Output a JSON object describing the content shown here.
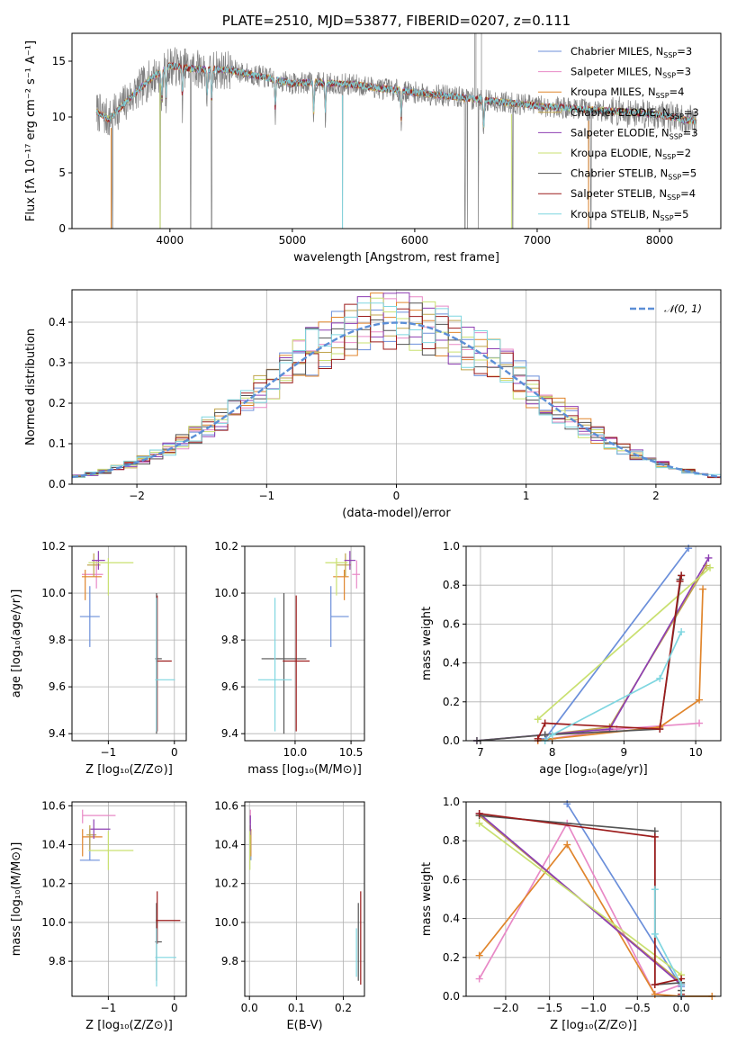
{
  "colors": {
    "chabrier_miles": "#6b8fda",
    "salpeter_miles": "#e889c6",
    "kroupa_miles": "#e0852c",
    "chabrier_elodie": "#bfa34b",
    "salpeter_elodie": "#8e3fb3",
    "kroupa_elodie": "#c9e070",
    "chabrier_stelib": "#555555",
    "salpeter_stelib": "#9c1b1b",
    "kroupa_stelib": "#7fd6e0",
    "data": "#808080",
    "normal_curve": "#5b8ed6"
  },
  "chart_data": [
    {
      "id": "spectrum",
      "type": "line",
      "title": "PLATE=2510, MJD=53877, FIBERID=0207, z=0.111",
      "xlabel": "wavelength [Angstrom, rest frame]",
      "ylabel": "Flux [fλ 10⁻¹⁷ erg cm⁻² s⁻¹ A⁻¹]",
      "xlim": [
        3200,
        8500
      ],
      "ylim": [
        0,
        17.5
      ],
      "xticks": [
        4000,
        5000,
        6000,
        7000,
        8000
      ],
      "yticks": [
        0,
        5,
        10,
        15
      ],
      "continuum": {
        "x": [
          3400,
          3500,
          3700,
          3850,
          4000,
          4200,
          4500,
          4800,
          5000,
          5200,
          5500,
          6000,
          6500,
          7000,
          7500,
          7800,
          8000,
          8200,
          8300
        ],
        "y": [
          10.5,
          9.8,
          12.0,
          13.5,
          14.6,
          14.3,
          14.2,
          13.5,
          13.0,
          13.1,
          12.9,
          12.2,
          11.6,
          11.0,
          10.6,
          10.4,
          10.2,
          9.8,
          9.6
        ]
      },
      "absorption_lines": [
        3934,
        3969,
        4102,
        4304,
        4341,
        4861,
        5175,
        5270,
        5890,
        6563
      ],
      "data_dropouts": [
        3530,
        3920,
        4170,
        4340,
        5410,
        6410,
        6430,
        6520,
        6800,
        7420,
        7440
      ],
      "legend": [
        {
          "label": "Chabrier MILES, N",
          "sub": "SSP",
          "tail": "=3",
          "color": "chabrier_miles"
        },
        {
          "label": "Salpeter MILES, N",
          "sub": "SSP",
          "tail": "=3",
          "color": "salpeter_miles"
        },
        {
          "label": "Kroupa MILES, N",
          "sub": "SSP",
          "tail": "=4",
          "color": "kroupa_miles"
        },
        {
          "label": "Chabrier ELODIE, N",
          "sub": "SSP",
          "tail": "=3",
          "color": "chabrier_elodie"
        },
        {
          "label": "Salpeter ELODIE, N",
          "sub": "SSP",
          "tail": "=3",
          "color": "salpeter_elodie"
        },
        {
          "label": "Kroupa ELODIE, N",
          "sub": "SSP",
          "tail": "=2",
          "color": "kroupa_elodie"
        },
        {
          "label": "Chabrier STELIB, N",
          "sub": "SSP",
          "tail": "=5",
          "color": "chabrier_stelib"
        },
        {
          "label": "Salpeter STELIB, N",
          "sub": "SSP",
          "tail": "=4",
          "color": "salpeter_stelib"
        },
        {
          "label": "Kroupa STELIB, N",
          "sub": "SSP",
          "tail": "=5",
          "color": "kroupa_stelib"
        }
      ]
    },
    {
      "id": "residuals",
      "type": "histogram",
      "xlabel": "(data-model)/error",
      "ylabel": "Normed distribution",
      "xlim": [
        -2.5,
        2.5
      ],
      "ylim": [
        0,
        0.48
      ],
      "xticks": [
        -2,
        -1,
        0,
        1,
        2
      ],
      "yticks": [
        0.0,
        0.1,
        0.2,
        0.3,
        0.4
      ],
      "bin_width": 0.1,
      "legend": "𝒩(0, 1)"
    },
    {
      "id": "age_vs_Z",
      "type": "errorbar",
      "xlabel": "Z [log₁₀(Z/Z⊙)]",
      "ylabel": "age  [log₁₀(age/yr)]",
      "xlim": [
        -1.55,
        0.18
      ],
      "ylim": [
        9.37,
        10.2
      ],
      "xticks": [
        -1,
        0
      ],
      "yticks": [
        9.4,
        9.6,
        9.8,
        10.0,
        10.2
      ],
      "points": [
        {
          "c": "chabrier_miles",
          "x": -1.28,
          "y": 9.9,
          "xe": [
            0.15,
            0.15
          ],
          "ye": [
            0.13,
            0.13
          ]
        },
        {
          "c": "salpeter_miles",
          "x": -1.18,
          "y": 10.08,
          "xe": [
            0.22,
            0.1
          ],
          "ye": [
            0.06,
            0.06
          ]
        },
        {
          "c": "kroupa_miles",
          "x": -1.35,
          "y": 10.07,
          "xe": [
            0.05,
            0.25
          ],
          "ye": [
            0.1,
            0.03
          ]
        },
        {
          "c": "chabrier_elodie",
          "x": -1.22,
          "y": 10.12,
          "xe": [
            0.1,
            0.1
          ],
          "ye": [
            0.05,
            0.05
          ]
        },
        {
          "c": "salpeter_elodie",
          "x": -1.15,
          "y": 10.14,
          "xe": [
            0.1,
            0.1
          ],
          "ye": [
            0.04,
            0.04
          ]
        },
        {
          "c": "kroupa_elodie",
          "x": -1.0,
          "y": 10.13,
          "xe": [
            0.3,
            0.38
          ],
          "ye": [
            0.14,
            0.02
          ]
        },
        {
          "c": "chabrier_stelib",
          "x": -0.27,
          "y": 9.72,
          "xe": [
            0.02,
            0.08
          ],
          "ye": [
            0.32,
            0.28
          ]
        },
        {
          "c": "salpeter_stelib",
          "x": -0.26,
          "y": 9.71,
          "xe": [
            0.02,
            0.22
          ],
          "ye": [
            0.3,
            0.28
          ]
        },
        {
          "c": "kroupa_stelib",
          "x": -0.27,
          "y": 9.63,
          "xe": [
            0.02,
            0.28
          ],
          "ye": [
            0.22,
            0.35
          ]
        }
      ]
    },
    {
      "id": "age_vs_mass",
      "type": "errorbar",
      "xlabel": "mass [log₁₀(M/M⊙)]",
      "ylabel": "",
      "xlim": [
        9.55,
        10.62
      ],
      "ylim": [
        9.37,
        10.2
      ],
      "xticks": [
        10.0,
        10.5
      ],
      "yticks": [
        9.4,
        9.6,
        9.8,
        10.0,
        10.2
      ],
      "points": [
        {
          "c": "chabrier_miles",
          "x": 10.32,
          "y": 9.9,
          "xe": [
            0.0,
            0.16
          ],
          "ye": [
            0.13,
            0.13
          ]
        },
        {
          "c": "salpeter_miles",
          "x": 10.55,
          "y": 10.08,
          "xe": [
            0.04,
            0.03
          ],
          "ye": [
            0.06,
            0.06
          ]
        },
        {
          "c": "kroupa_miles",
          "x": 10.44,
          "y": 10.07,
          "xe": [
            0.1,
            0.04
          ],
          "ye": [
            0.1,
            0.03
          ]
        },
        {
          "c": "chabrier_elodie",
          "x": 10.45,
          "y": 10.12,
          "xe": [
            0.08,
            0.05
          ],
          "ye": [
            0.05,
            0.05
          ]
        },
        {
          "c": "salpeter_elodie",
          "x": 10.49,
          "y": 10.14,
          "xe": [
            0.05,
            0.05
          ],
          "ye": [
            0.04,
            0.04
          ]
        },
        {
          "c": "kroupa_elodie",
          "x": 10.37,
          "y": 10.13,
          "xe": [
            0.1,
            0.1
          ],
          "ye": [
            0.14,
            0.02
          ]
        },
        {
          "c": "chabrier_stelib",
          "x": 9.9,
          "y": 9.72,
          "xe": [
            0.2,
            0.2
          ],
          "ye": [
            0.32,
            0.28
          ]
        },
        {
          "c": "salpeter_stelib",
          "x": 10.01,
          "y": 9.71,
          "xe": [
            0.12,
            0.12
          ],
          "ye": [
            0.3,
            0.28
          ]
        },
        {
          "c": "kroupa_stelib",
          "x": 9.82,
          "y": 9.63,
          "xe": [
            0.15,
            0.15
          ],
          "ye": [
            0.22,
            0.35
          ]
        }
      ]
    },
    {
      "id": "massweight_vs_age",
      "type": "line",
      "xlabel": "age  [log₁₀(age/yr)]",
      "ylabel": "mass weight",
      "xlim": [
        6.8,
        10.35
      ],
      "ylim": [
        0,
        1.0
      ],
      "xticks": [
        7,
        8,
        9,
        10
      ],
      "yticks": [
        0.0,
        0.2,
        0.4,
        0.6,
        0.8,
        1.0
      ],
      "series": [
        {
          "c": "chabrier_miles",
          "x": [
            7.9,
            9.9
          ],
          "y": [
            0.01,
            0.99
          ]
        },
        {
          "c": "salpeter_miles",
          "x": [
            7.8,
            8.9,
            10.05
          ],
          "y": [
            0.0,
            0.06,
            0.09
          ]
        },
        {
          "c": "kroupa_miles",
          "x": [
            7.8,
            8.0,
            9.5,
            10.05,
            10.1
          ],
          "y": [
            0.0,
            0.01,
            0.07,
            0.21,
            0.78
          ]
        },
        {
          "c": "chabrier_elodie",
          "x": [
            7.9,
            8.8,
            10.15
          ],
          "y": [
            0.03,
            0.07,
            0.9
          ]
        },
        {
          "c": "salpeter_elodie",
          "x": [
            6.95,
            8.8,
            10.18
          ],
          "y": [
            0.0,
            0.06,
            0.94
          ]
        },
        {
          "c": "kroupa_elodie",
          "x": [
            7.8,
            10.2
          ],
          "y": [
            0.11,
            0.89
          ]
        },
        {
          "c": "chabrier_stelib",
          "x": [
            6.95,
            7.9,
            9.5,
            9.8,
            9.78
          ],
          "y": [
            0.0,
            0.03,
            0.06,
            0.85,
            0.83
          ]
        },
        {
          "c": "salpeter_stelib",
          "x": [
            7.8,
            7.9,
            9.5,
            9.78,
            9.8
          ],
          "y": [
            0.01,
            0.09,
            0.06,
            0.82,
            0.85
          ]
        },
        {
          "c": "kroupa_stelib",
          "x": [
            7.9,
            8.0,
            9.5,
            9.8
          ],
          "y": [
            0.0,
            0.03,
            0.32,
            0.56
          ]
        }
      ]
    },
    {
      "id": "mass_vs_Z",
      "type": "errorbar",
      "xlabel": "Z [log₁₀(Z/Z⊙)]",
      "ylabel": "mass [log₁₀(M/M⊙)]",
      "xlim": [
        -1.55,
        0.18
      ],
      "ylim": [
        9.62,
        10.62
      ],
      "xticks": [
        -1,
        0
      ],
      "yticks": [
        9.8,
        10.0,
        10.2,
        10.4,
        10.6
      ],
      "points": [
        {
          "c": "chabrier_miles",
          "x": -1.28,
          "y": 10.32,
          "xe": [
            0.15,
            0.15
          ],
          "ye": [
            0.0,
            0.16
          ]
        },
        {
          "c": "salpeter_miles",
          "x": -1.39,
          "y": 10.55,
          "xe": [
            0.0,
            0.5
          ],
          "ye": [
            0.04,
            0.03
          ]
        },
        {
          "c": "kroupa_miles",
          "x": -1.39,
          "y": 10.44,
          "xe": [
            0.0,
            0.3
          ],
          "ye": [
            0.1,
            0.04
          ]
        },
        {
          "c": "chabrier_elodie",
          "x": -1.28,
          "y": 10.45,
          "xe": [
            0.05,
            0.1
          ],
          "ye": [
            0.08,
            0.05
          ]
        },
        {
          "c": "salpeter_elodie",
          "x": -1.22,
          "y": 10.48,
          "xe": [
            0.05,
            0.25
          ],
          "ye": [
            0.05,
            0.05
          ]
        },
        {
          "c": "kroupa_elodie",
          "x": -1.0,
          "y": 10.37,
          "xe": [
            0.3,
            0.38
          ],
          "ye": [
            0.1,
            0.1
          ]
        },
        {
          "c": "chabrier_stelib",
          "x": -0.27,
          "y": 9.9,
          "xe": [
            0.02,
            0.08
          ],
          "ye": [
            0.2,
            0.2
          ]
        },
        {
          "c": "salpeter_stelib",
          "x": -0.26,
          "y": 10.01,
          "xe": [
            0.02,
            0.35
          ],
          "ye": [
            0.12,
            0.15
          ]
        },
        {
          "c": "kroupa_stelib",
          "x": -0.27,
          "y": 9.82,
          "xe": [
            0.02,
            0.3
          ],
          "ye": [
            0.15,
            0.15
          ]
        }
      ]
    },
    {
      "id": "mass_vs_ebv",
      "type": "errorbar",
      "xlabel": "E(B-V)",
      "ylabel": "",
      "xlim": [
        -0.01,
        0.245
      ],
      "ylim": [
        9.62,
        10.62
      ],
      "xticks": [
        0.0,
        0.1,
        0.2
      ],
      "yticks": [
        9.8,
        10.0,
        10.2,
        10.4,
        10.6
      ],
      "points": [
        {
          "c": "chabrier_miles",
          "x": 0.003,
          "y": 10.32,
          "xe": [
            0.0,
            0.0
          ],
          "ye": [
            0.0,
            0.16
          ]
        },
        {
          "c": "salpeter_miles",
          "x": 0.002,
          "y": 10.55,
          "xe": [
            0.0,
            0.0
          ],
          "ye": [
            0.04,
            0.03
          ]
        },
        {
          "c": "kroupa_miles",
          "x": 0.003,
          "y": 10.44,
          "xe": [
            0.0,
            0.0
          ],
          "ye": [
            0.1,
            0.04
          ]
        },
        {
          "c": "chabrier_elodie",
          "x": 0.002,
          "y": 10.45,
          "xe": [
            0.0,
            0.0
          ],
          "ye": [
            0.08,
            0.05
          ]
        },
        {
          "c": "salpeter_elodie",
          "x": 0.002,
          "y": 10.5,
          "xe": [
            0.0,
            0.0
          ],
          "ye": [
            0.05,
            0.05
          ]
        },
        {
          "c": "kroupa_elodie",
          "x": 0.001,
          "y": 10.37,
          "xe": [
            0.0,
            0.0
          ],
          "ye": [
            0.1,
            0.1
          ]
        },
        {
          "c": "chabrier_stelib",
          "x": 0.232,
          "y": 9.9,
          "xe": [
            0.0,
            0.0
          ],
          "ye": [
            0.2,
            0.2
          ]
        },
        {
          "c": "salpeter_stelib",
          "x": 0.237,
          "y": 10.01,
          "xe": [
            0.0,
            0.0
          ],
          "ye": [
            0.33,
            0.15
          ]
        },
        {
          "c": "kroupa_stelib",
          "x": 0.228,
          "y": 9.82,
          "xe": [
            0.0,
            0.0
          ],
          "ye": [
            0.1,
            0.15
          ]
        }
      ]
    },
    {
      "id": "massweight_vs_Z",
      "type": "line",
      "xlabel": "Z [log₁₀(Z/Z⊙)]",
      "ylabel": "mass weight",
      "xlim": [
        -2.45,
        0.45
      ],
      "ylim": [
        0,
        1.0
      ],
      "xticks": [
        -2.0,
        -1.5,
        -1.0,
        -0.5,
        0.0
      ],
      "yticks": [
        0.0,
        0.2,
        0.4,
        0.6,
        0.8,
        1.0
      ],
      "series": [
        {
          "c": "chabrier_miles",
          "x": [
            -1.3,
            0.0,
            0.0
          ],
          "y": [
            0.99,
            0.05,
            0.0
          ]
        },
        {
          "c": "salpeter_miles",
          "x": [
            -2.3,
            -1.3,
            -0.3,
            0.0
          ],
          "y": [
            0.09,
            0.89,
            0.01,
            0.06
          ]
        },
        {
          "c": "kroupa_miles",
          "x": [
            -2.3,
            -1.3,
            -0.3,
            0.0,
            0.35
          ],
          "y": [
            0.21,
            0.78,
            0.01,
            0.0,
            0.0
          ]
        },
        {
          "c": "chabrier_elodie",
          "x": [
            -2.3,
            0.0,
            0.0
          ],
          "y": [
            0.93,
            0.07,
            0.03
          ]
        },
        {
          "c": "salpeter_elodie",
          "x": [
            -2.3,
            0.0,
            0.0
          ],
          "y": [
            0.94,
            0.06,
            0.0
          ]
        },
        {
          "c": "kroupa_elodie",
          "x": [
            -2.3,
            0.0
          ],
          "y": [
            0.89,
            0.11
          ]
        },
        {
          "c": "chabrier_stelib",
          "x": [
            -2.3,
            -0.3,
            -0.3,
            0.0,
            0.0
          ],
          "y": [
            0.93,
            0.85,
            0.06,
            0.07,
            0.03
          ]
        },
        {
          "c": "salpeter_stelib",
          "x": [
            -2.3,
            -0.3,
            -0.3,
            0.0,
            0.0
          ],
          "y": [
            0.94,
            0.82,
            0.06,
            0.09,
            0.01
          ]
        },
        {
          "c": "kroupa_stelib",
          "x": [
            -0.3,
            -0.3,
            0.0,
            0.0
          ],
          "y": [
            0.55,
            0.32,
            0.06,
            0.0
          ]
        }
      ]
    }
  ]
}
